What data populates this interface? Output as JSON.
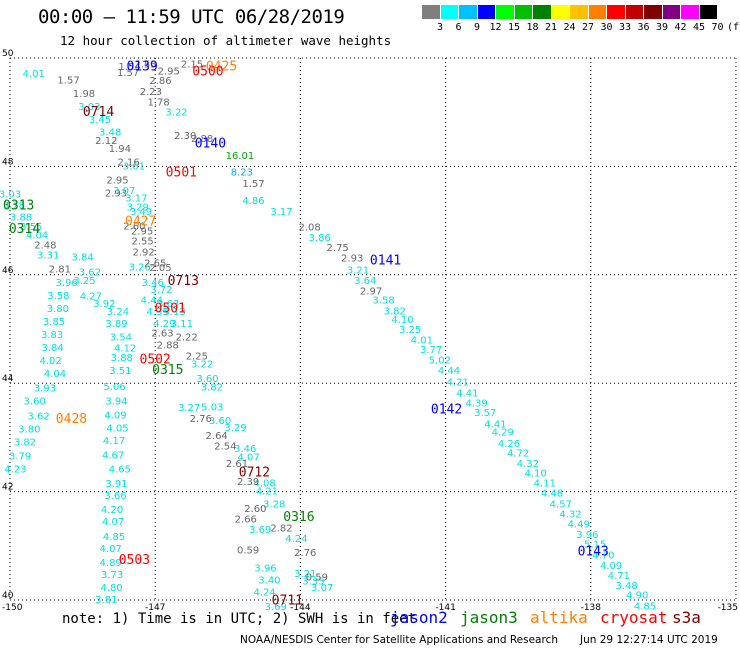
{
  "header": {
    "title": "00:00 – 11:59 UTC 06/28/2019",
    "subtitle": "12 hour collection of altimeter wave heights"
  },
  "colorbar": {
    "colors": [
      "#7f7f7f",
      "#00ffff",
      "#00c0ff",
      "#0000ff",
      "#00ff00",
      "#00c000",
      "#008000",
      "#ffff00",
      "#ffc000",
      "#ff8000",
      "#ff0000",
      "#c00000",
      "#800000",
      "#800080",
      "#ff00ff",
      "#000000"
    ],
    "tick_labels": [
      "3",
      "6",
      "9",
      "12",
      "15",
      "18",
      "21",
      "24",
      "27",
      "30",
      "33",
      "36",
      "39",
      "42",
      "45",
      "70",
      "(ft)"
    ]
  },
  "footer": {
    "note": "note: 1) Time is in UTC; 2) SWH is in feet",
    "legend": [
      {
        "label": "jason2",
        "color": "#0000ff"
      },
      {
        "label": "jason3",
        "color": "#008000"
      },
      {
        "label": "altika",
        "color": "#ff8000"
      },
      {
        "label": "cryosat",
        "color": "#ff0000"
      },
      {
        "label": "s3a",
        "color": "#800000"
      }
    ],
    "credit": "NOAA/NESDIS Center for Satellite Applications and Research",
    "stamp": "Jun 29 12:27:14 UTC 2019"
  },
  "chart_data": {
    "type": "scatter",
    "xlim": [
      -150,
      -135
    ],
    "ylim": [
      40,
      50
    ],
    "x_ticks": [
      -150,
      -147,
      -144,
      -141,
      -138,
      -135
    ],
    "x_tick_labels": [
      "-150",
      "-147",
      "-144",
      "-141",
      "-138",
      "-135"
    ],
    "y_ticks": [
      40,
      42,
      44,
      46,
      48,
      50
    ],
    "y_tick_labels": [
      "40",
      "42",
      "44",
      "46",
      "48",
      "50"
    ],
    "grid": true,
    "grid_style": "dotted",
    "pass_labels": [
      {
        "text": "0139",
        "lon": -147.27,
        "lat": 49.86,
        "color": "#0000ff"
      },
      {
        "text": "0425",
        "lon": -145.63,
        "lat": 49.86,
        "color": "#ff8000"
      },
      {
        "text": "0500",
        "lon": -145.91,
        "lat": 49.77,
        "color": "#ff0000"
      },
      {
        "text": "0714",
        "lon": -148.17,
        "lat": 49.02,
        "color": "#800000"
      },
      {
        "text": "0140",
        "lon": -145.86,
        "lat": 48.44,
        "color": "#0000ff"
      },
      {
        "text": "0501",
        "lon": -146.46,
        "lat": 47.91,
        "color": "#ff0000"
      },
      {
        "text": "0313",
        "lon": -149.82,
        "lat": 47.3,
        "color": "#008000"
      },
      {
        "text": "0427",
        "lon": -147.3,
        "lat": 47.0,
        "color": "#ff8000"
      },
      {
        "text": "0314",
        "lon": -149.7,
        "lat": 46.86,
        "color": "#008000"
      },
      {
        "text": "0141",
        "lon": -142.24,
        "lat": 46.28,
        "color": "#0000ff"
      },
      {
        "text": "0713",
        "lon": -146.42,
        "lat": 45.9,
        "color": "#800000"
      },
      {
        "text": "0501",
        "lon": -146.69,
        "lat": 45.4,
        "color": "#ff0000"
      },
      {
        "text": "0502",
        "lon": -147.0,
        "lat": 44.46,
        "color": "#ff0000"
      },
      {
        "text": "0315",
        "lon": -146.74,
        "lat": 44.26,
        "color": "#008000"
      },
      {
        "text": "0142",
        "lon": -140.98,
        "lat": 43.53,
        "color": "#0000ff"
      },
      {
        "text": "0428",
        "lon": -148.73,
        "lat": 43.36,
        "color": "#ff8000"
      },
      {
        "text": "0712",
        "lon": -144.95,
        "lat": 42.37,
        "color": "#800000"
      },
      {
        "text": "0316",
        "lon": -144.03,
        "lat": 41.55,
        "color": "#008000"
      },
      {
        "text": "0143",
        "lon": -137.95,
        "lat": 40.91,
        "color": "#0000ff"
      },
      {
        "text": "0503",
        "lon": -147.43,
        "lat": 40.76,
        "color": "#ff0000"
      },
      {
        "text": "0711",
        "lon": -144.27,
        "lat": 40.01,
        "color": "#800000"
      }
    ],
    "series": [
      {
        "values": [
          [
            -147.2,
            49.9,
            "2.53"
          ],
          [
            -147.53,
            49.85,
            "1.54"
          ],
          [
            -147.56,
            49.74,
            "1.57"
          ],
          [
            -148.79,
            49.6,
            "1.57"
          ],
          [
            -148.47,
            49.35,
            "1.98"
          ],
          [
            -148.36,
            49.11,
            "3.03"
          ],
          [
            -148.14,
            48.87,
            "3.45"
          ],
          [
            -147.93,
            48.64,
            "3.48"
          ],
          [
            -148.01,
            48.49,
            "2.12"
          ],
          [
            -147.73,
            48.34,
            "1.94"
          ],
          [
            -147.55,
            48.09,
            "2.16"
          ],
          [
            -147.44,
            48.02,
            "3.61"
          ],
          [
            -147.78,
            47.76,
            "2.95"
          ],
          [
            -147.81,
            47.52,
            "2.93"
          ],
          [
            -147.64,
            47.56,
            "3.07"
          ],
          [
            -147.39,
            47.43,
            "3.17"
          ],
          [
            -147.36,
            47.26,
            "3.29"
          ],
          [
            -147.29,
            47.18,
            "3.49"
          ],
          [
            -147.27,
            46.82,
            "2.95"
          ],
          [
            -147.26,
            46.63,
            "2.55"
          ],
          [
            -147.24,
            46.43,
            "2.92"
          ],
          [
            -147.32,
            46.15,
            "3.26"
          ],
          [
            -147.05,
            45.87,
            "3.46"
          ],
          [
            -146.87,
            45.74,
            "3.72"
          ],
          [
            -146.73,
            45.48,
            "3.63"
          ],
          [
            -146.6,
            45.33,
            "3.13"
          ],
          [
            -146.45,
            45.11,
            "3.11"
          ],
          [
            -146.35,
            44.86,
            "2.22"
          ],
          [
            -146.14,
            44.51,
            "2.25"
          ],
          [
            -146.03,
            44.36,
            "3.22"
          ],
          [
            -145.92,
            44.1,
            "3.60"
          ],
          [
            -145.83,
            43.94,
            "3.82"
          ],
          [
            -145.82,
            43.57,
            "5.03"
          ],
          [
            -145.66,
            43.32,
            "3.60"
          ],
          [
            -145.34,
            43.19,
            "3.29"
          ],
          [
            -145.14,
            42.8,
            "3.46"
          ],
          [
            -145.07,
            42.65,
            "4.07"
          ],
          [
            -144.74,
            42.17,
            "4.08"
          ],
          [
            -144.69,
            42.02,
            "4.21"
          ],
          [
            -144.54,
            41.78,
            "3.28"
          ],
          [
            -144.39,
            41.34,
            "2.82"
          ],
          [
            -144.08,
            41.14,
            "4.24"
          ],
          [
            -143.9,
            40.89,
            "2.76"
          ],
          [
            -143.9,
            40.5,
            "3.21"
          ],
          [
            -143.73,
            40.36,
            "3.35"
          ],
          [
            -143.55,
            40.24,
            "3.07"
          ]
        ]
      },
      {
        "values": [
          [
            -146.24,
            49.9,
            "2.15"
          ],
          [
            -146.72,
            49.77,
            "2.95"
          ],
          [
            -146.89,
            49.59,
            "2.86"
          ],
          [
            -147.09,
            49.39,
            "2.23"
          ],
          [
            -146.93,
            49.2,
            "1.78"
          ],
          [
            -146.56,
            49.01,
            "3.22"
          ],
          [
            -146.38,
            48.58,
            "2.30"
          ],
          [
            -146.03,
            48.52,
            "2.88"
          ],
          [
            -145.25,
            48.21,
            "16.01"
          ],
          [
            -145.21,
            47.91,
            "8.23"
          ],
          [
            -144.97,
            47.69,
            "1.57"
          ],
          [
            -144.97,
            47.38,
            "4.86"
          ],
          [
            -144.39,
            47.18,
            "3.17"
          ],
          [
            -143.81,
            46.89,
            "2.08"
          ],
          [
            -143.6,
            46.7,
            "3.86"
          ],
          [
            -143.23,
            46.51,
            "2.75"
          ],
          [
            -142.93,
            46.32,
            "2.93"
          ],
          [
            -142.81,
            46.1,
            "3.21"
          ],
          [
            -142.66,
            45.9,
            "3.64"
          ],
          [
            -142.54,
            45.71,
            "2.97"
          ],
          [
            -142.28,
            45.54,
            "3.58"
          ],
          [
            -142.05,
            45.34,
            "3.82"
          ],
          [
            -141.89,
            45.18,
            "4.10"
          ],
          [
            -141.73,
            45.0,
            "3.25"
          ],
          [
            -141.49,
            44.81,
            "4.01"
          ],
          [
            -141.3,
            44.63,
            "3.77"
          ],
          [
            -141.12,
            44.44,
            "5.02"
          ],
          [
            -140.93,
            44.24,
            "4.44"
          ],
          [
            -140.75,
            44.03,
            "4.21"
          ],
          [
            -140.55,
            43.83,
            "4.41"
          ],
          [
            -140.36,
            43.64,
            "4.39"
          ],
          [
            -140.18,
            43.47,
            "3.57"
          ],
          [
            -139.97,
            43.26,
            "4.41"
          ],
          [
            -139.82,
            43.11,
            "4.29"
          ],
          [
            -139.69,
            42.9,
            "4.26"
          ],
          [
            -139.5,
            42.72,
            "4.72"
          ],
          [
            -139.3,
            42.53,
            "4.32"
          ],
          [
            -139.14,
            42.35,
            "4.10"
          ],
          [
            -138.95,
            42.17,
            "4.11"
          ],
          [
            -138.8,
            41.98,
            "4.48"
          ],
          [
            -138.62,
            41.78,
            "4.57"
          ],
          [
            -138.42,
            41.6,
            "4.32"
          ],
          [
            -138.25,
            41.41,
            "4.49"
          ],
          [
            -138.07,
            41.22,
            "3.96"
          ],
          [
            -137.91,
            41.04,
            "5.15"
          ],
          [
            -137.74,
            40.84,
            "4.70"
          ],
          [
            -137.58,
            40.65,
            "4.09"
          ],
          [
            -137.42,
            40.46,
            "4.71"
          ],
          [
            -137.26,
            40.28,
            "3.48"
          ],
          [
            -137.04,
            40.1,
            "4.90"
          ],
          [
            -136.88,
            39.9,
            "4.85"
          ]
        ]
      },
      {
        "values": [
          [
            -149.51,
            49.72,
            "4.01"
          ],
          [
            -150.0,
            47.5,
            "3.03"
          ],
          [
            -149.92,
            47.3,
            "3.78"
          ],
          [
            -149.77,
            47.08,
            "3.88"
          ],
          [
            -149.56,
            46.9,
            "3.55"
          ],
          [
            -149.44,
            46.74,
            "4.04"
          ],
          [
            -149.27,
            46.56,
            "2.48"
          ],
          [
            -149.21,
            46.37,
            "3.31"
          ],
          [
            -148.97,
            46.12,
            "2.81"
          ],
          [
            -148.83,
            45.87,
            "3.96"
          ],
          [
            -149.0,
            45.63,
            "3.58"
          ],
          [
            -149.01,
            45.39,
            "3.80"
          ],
          [
            -149.09,
            45.15,
            "3.85"
          ],
          [
            -149.13,
            44.91,
            "3.83"
          ],
          [
            -149.12,
            44.67,
            "3.84"
          ],
          [
            -149.16,
            44.43,
            "4.02"
          ],
          [
            -149.07,
            44.19,
            "4.04"
          ],
          [
            -149.28,
            43.92,
            "3.93"
          ],
          [
            -149.49,
            43.68,
            "3.60"
          ],
          [
            -149.41,
            43.4,
            "3.62"
          ],
          [
            -149.6,
            43.16,
            "3.80"
          ],
          [
            -149.69,
            42.92,
            "3.82"
          ],
          [
            -149.79,
            42.67,
            "3.79"
          ],
          [
            -149.89,
            42.43,
            "4.23"
          ],
          [
            -148.5,
            46.34,
            "3.84"
          ],
          [
            -148.35,
            46.06,
            "3.62"
          ],
          [
            -148.46,
            45.9,
            "3.25"
          ],
          [
            -148.33,
            45.62,
            "4.27"
          ],
          [
            -148.05,
            45.48,
            "3.92"
          ],
          [
            -147.77,
            45.33,
            "3.24"
          ],
          [
            -147.8,
            45.11,
            "3.89"
          ],
          [
            -147.71,
            44.86,
            "3.54"
          ],
          [
            -147.62,
            44.66,
            "4.12"
          ],
          [
            -147.69,
            44.48,
            "3.88"
          ],
          [
            -147.72,
            44.24,
            "3.51"
          ],
          [
            -147.84,
            43.95,
            "5.06"
          ],
          [
            -147.8,
            43.68,
            "3.94"
          ],
          [
            -147.82,
            43.42,
            "4.09"
          ],
          [
            -147.78,
            43.18,
            "4.05"
          ],
          [
            -147.85,
            42.95,
            "4.17"
          ],
          [
            -147.87,
            42.68,
            "4.67"
          ],
          [
            -147.73,
            42.43,
            "4.65"
          ],
          [
            -147.8,
            42.16,
            "3.91"
          ],
          [
            -147.82,
            41.94,
            "3.66"
          ],
          [
            -147.89,
            41.68,
            "4.20"
          ],
          [
            -147.87,
            41.46,
            "4.07"
          ],
          [
            -147.85,
            41.18,
            "4.85"
          ],
          [
            -147.92,
            40.96,
            "4.07"
          ],
          [
            -147.92,
            40.7,
            "4.89"
          ],
          [
            -147.89,
            40.48,
            "3.73"
          ],
          [
            -147.9,
            40.24,
            "4.80"
          ],
          [
            -148.01,
            40.02,
            "3.81"
          ]
        ]
      },
      {
        "values": [
          [
            -147.43,
            46.91,
            "2.60"
          ],
          [
            -147.0,
            46.23,
            "2.65"
          ],
          [
            -146.89,
            46.14,
            "2.05"
          ],
          [
            -147.07,
            45.54,
            "4.44"
          ],
          [
            -146.95,
            45.33,
            "4.35"
          ],
          [
            -146.81,
            45.11,
            "4.29"
          ],
          [
            -146.85,
            44.94,
            "2.63"
          ],
          [
            -146.74,
            44.71,
            "2.88"
          ],
          [
            -146.3,
            43.56,
            "3.27"
          ],
          [
            -146.06,
            43.36,
            "2.76"
          ],
          [
            -145.73,
            43.04,
            "2.64"
          ],
          [
            -145.55,
            42.85,
            "2.54"
          ],
          [
            -145.31,
            42.53,
            "2.61"
          ],
          [
            -145.08,
            42.2,
            "2.39"
          ],
          [
            -144.93,
            41.7,
            "2.60"
          ],
          [
            -145.13,
            41.5,
            "2.66"
          ],
          [
            -144.83,
            41.31,
            "3.69"
          ],
          [
            -145.08,
            40.93,
            "0.59"
          ],
          [
            -144.72,
            40.6,
            "3.96"
          ],
          [
            -144.64,
            40.38,
            "3.40"
          ],
          [
            -144.74,
            40.16,
            "4.24"
          ],
          [
            -144.51,
            39.89,
            "3.69"
          ],
          [
            -143.66,
            40.43,
            "0.59"
          ]
        ]
      }
    ]
  }
}
